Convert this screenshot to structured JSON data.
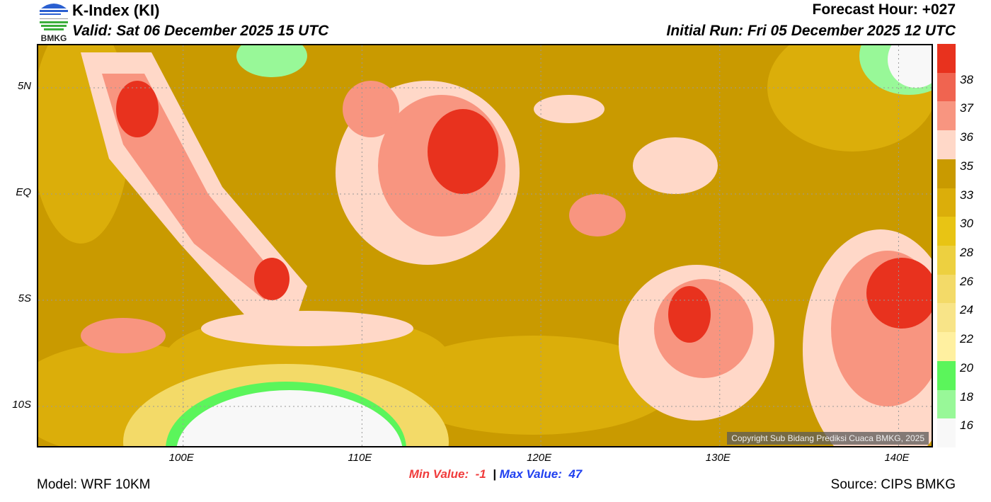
{
  "header": {
    "title": "K-Index (KI)",
    "valid": "Valid: Sat 06 December 2025 15 UTC",
    "forecast_hour": "Forecast Hour: +027",
    "initial_run": "Initial Run: Fri 05 December 2025 12 UTC",
    "logo_text": "BMKG"
  },
  "map": {
    "lon_ticks": [
      {
        "value": 100,
        "label": "100E"
      },
      {
        "value": 110,
        "label": "110E"
      },
      {
        "value": 120,
        "label": "120E"
      },
      {
        "value": 130,
        "label": "130E"
      },
      {
        "value": 140,
        "label": "140E"
      }
    ],
    "lat_ticks": [
      {
        "value": 5,
        "label": "5N"
      },
      {
        "value": 0,
        "label": "EQ"
      },
      {
        "value": -5,
        "label": "5S"
      },
      {
        "value": -10,
        "label": "10S"
      }
    ],
    "lon_range": [
      91.9,
      142
    ],
    "lat_range": [
      -12,
      7
    ],
    "copyright": "Copyright Sub Bidang Prediksi Cuaca BMKG, 2025"
  },
  "colorbar": {
    "colors": [
      "#e8321e",
      "#f06450",
      "#f89580",
      "#ffd8c8",
      "#c99a00",
      "#dbae0a",
      "#e8c414",
      "#edd040",
      "#f3da68",
      "#f8e488",
      "#fff0a0",
      "#5bf55b",
      "#98f898",
      "#f8f8f8"
    ],
    "labels": [
      "38",
      "37",
      "36",
      "35",
      "33",
      "30",
      "28",
      "26",
      "24",
      "22",
      "20",
      "18",
      "16"
    ]
  },
  "footer": {
    "min_label": "Min Value:",
    "min_value": "-1",
    "separator": "|",
    "max_label": "Max Value:",
    "max_value": "47",
    "model": "Model: WRF 10KM",
    "source": "Source: CIPS BMKG"
  }
}
